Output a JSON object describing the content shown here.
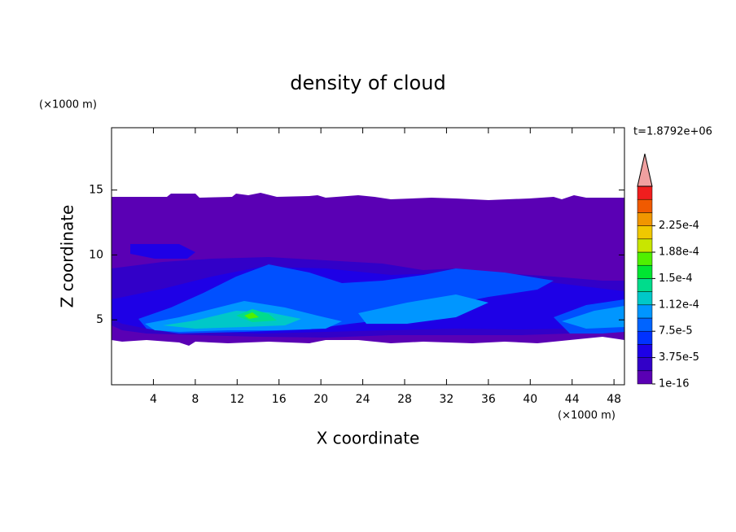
{
  "chart_data": {
    "type": "contour",
    "title": "density of cloud",
    "x_label": "X coordinate",
    "y_label": "Z coordinate",
    "x_unit": "(×1000 m)",
    "y_unit": "(×1000 m)",
    "annotation": "t=1.8792e+06",
    "xlim": [
      0,
      49
    ],
    "ylim": [
      0,
      19.8
    ],
    "xticks": [
      4,
      8,
      12,
      16,
      20,
      24,
      28,
      32,
      36,
      40,
      44,
      48
    ],
    "yticks": [
      5,
      10,
      15
    ],
    "colorbar": {
      "colors": [
        "#5a00b4",
        "#3200c8",
        "#1e00e6",
        "#0032ff",
        "#0064ff",
        "#0096ff",
        "#00c8c8",
        "#00dc8c",
        "#00e632",
        "#50f000",
        "#c8e600",
        "#f0c800",
        "#f09600",
        "#f05a00",
        "#f01e1e"
      ],
      "over_color": "#f0a0a0",
      "ticks": [
        {
          "value": 1e-16,
          "label": "1e-16"
        },
        {
          "value": 3.75e-05,
          "label": "3.75e-5"
        },
        {
          "value": 7.5e-05,
          "label": "7.5e-5"
        },
        {
          "value": 0.000112,
          "label": "1.12e-4"
        },
        {
          "value": 0.00015,
          "label": "1.5e-4"
        },
        {
          "value": 0.000188,
          "label": "1.88e-4"
        },
        {
          "value": 0.000225,
          "label": "2.25e-4"
        }
      ]
    }
  }
}
